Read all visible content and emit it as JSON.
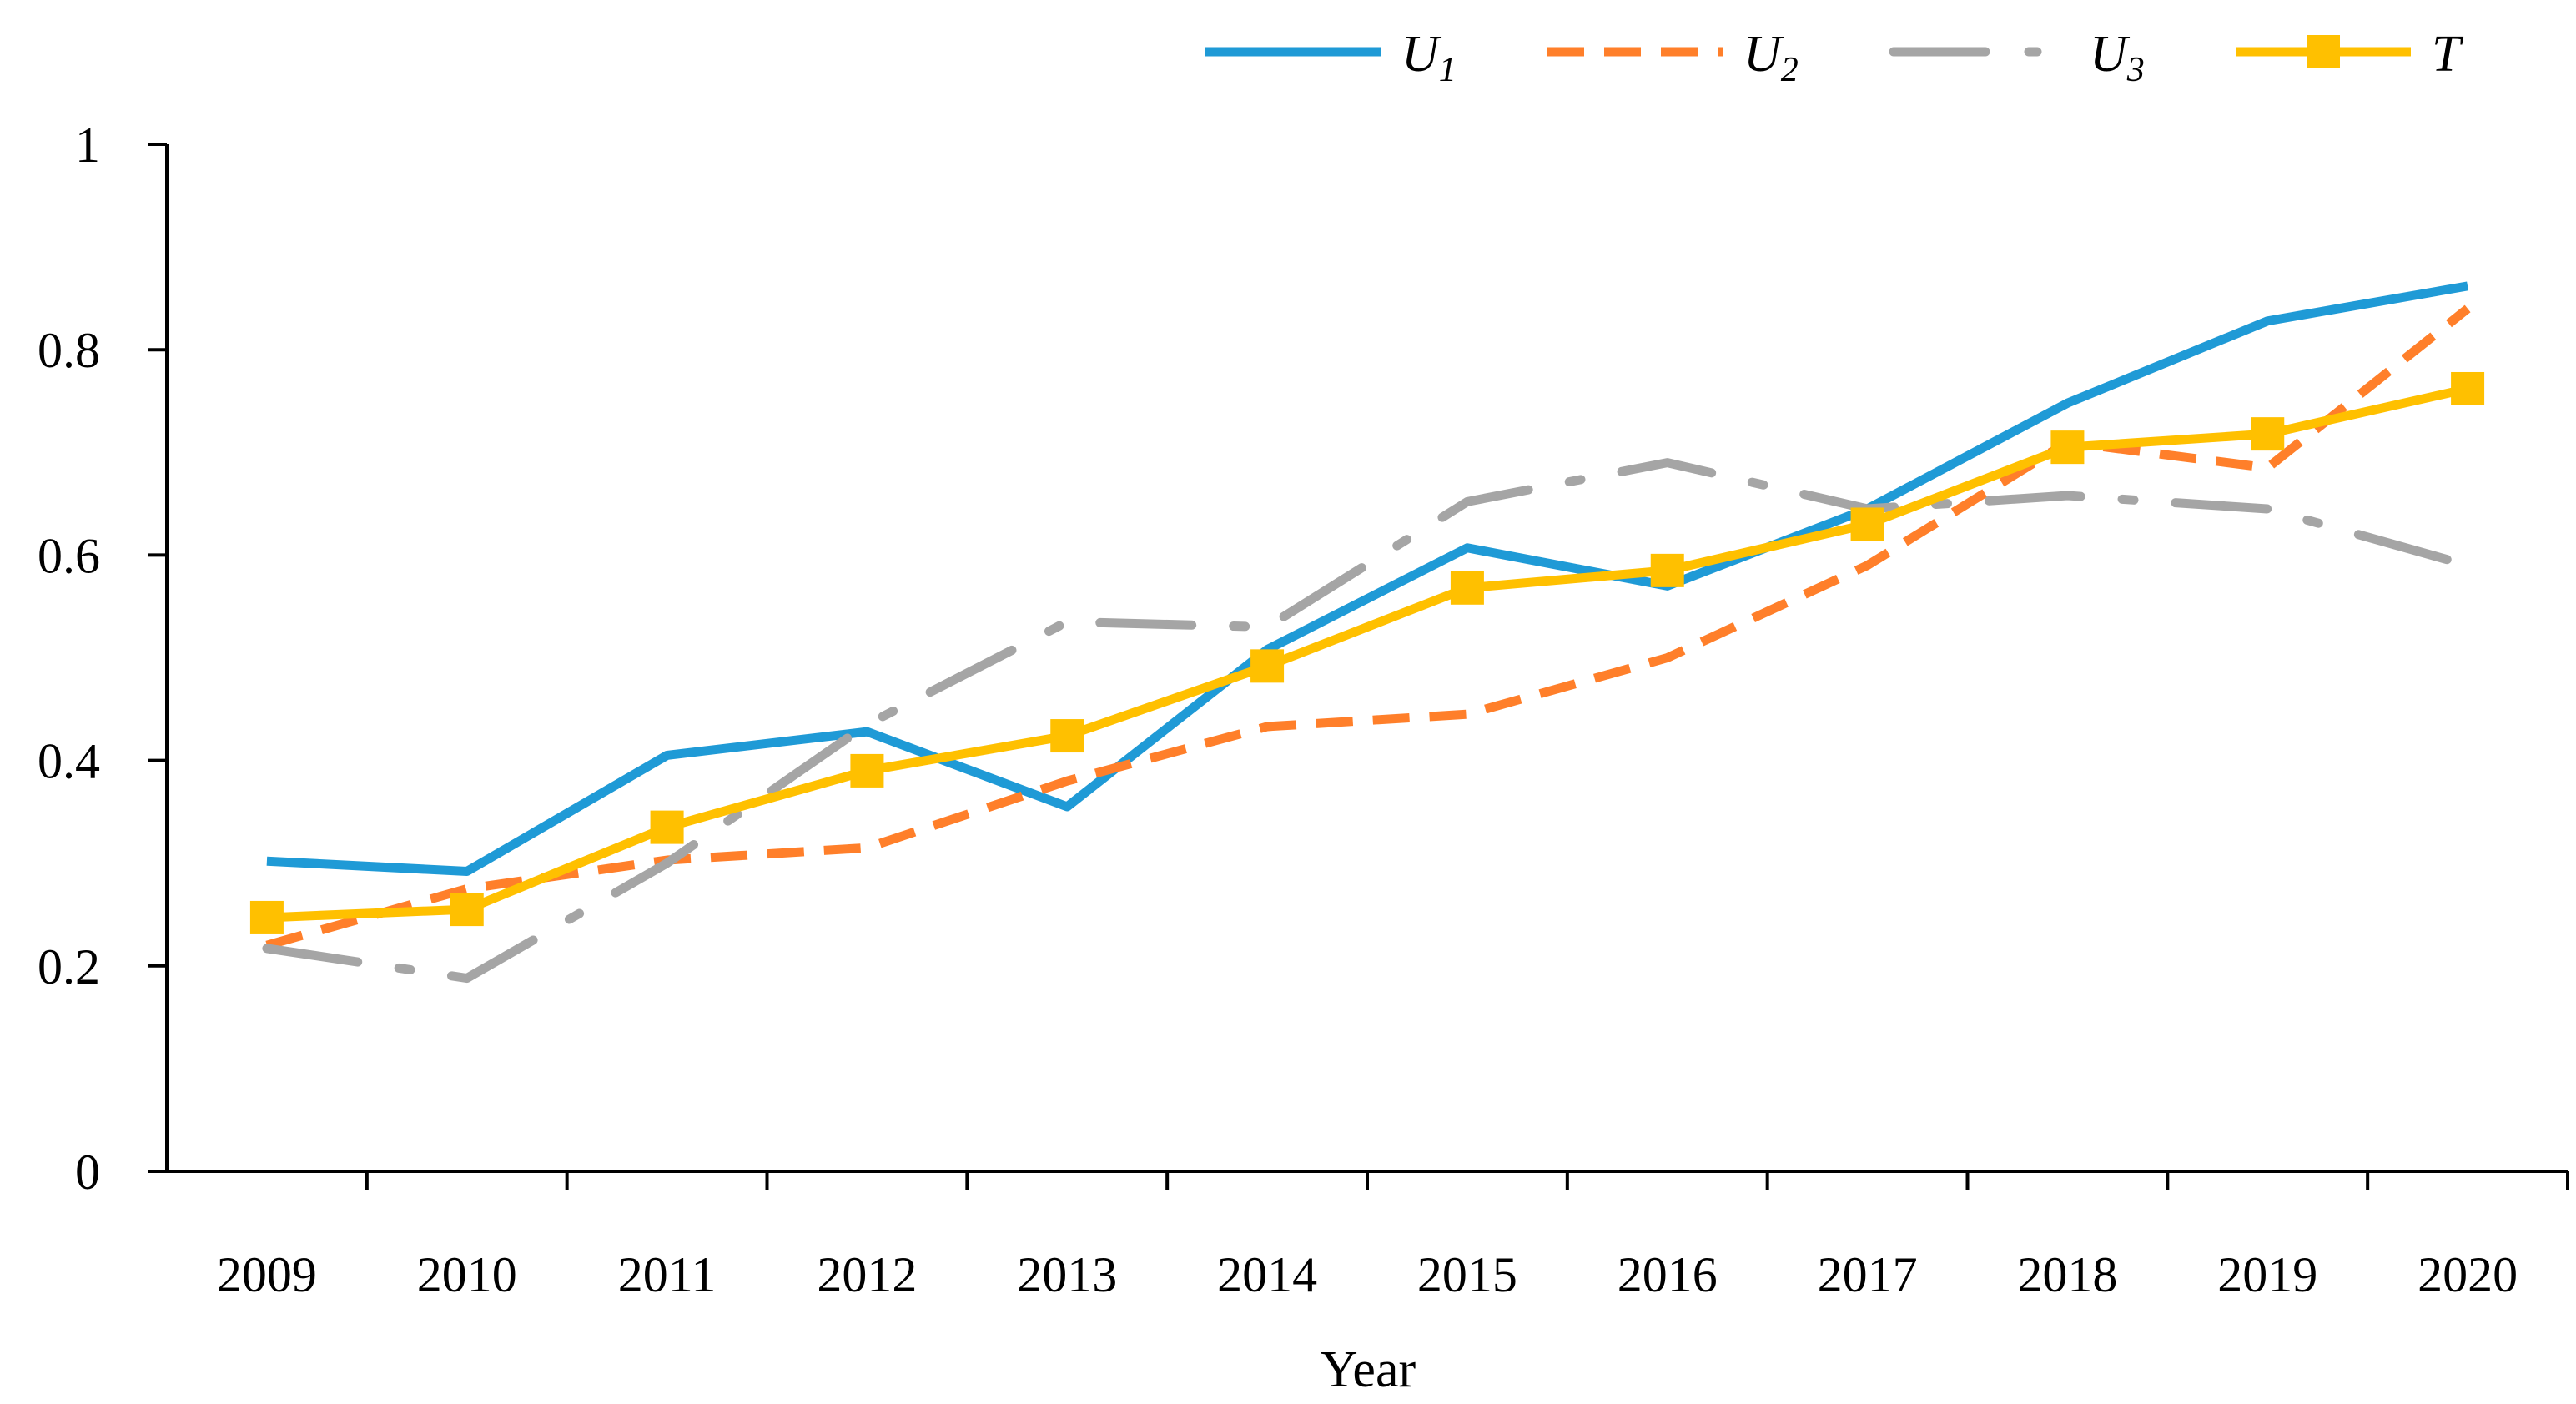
{
  "chart_data": {
    "type": "line",
    "title": "",
    "xlabel": "Year",
    "ylabel": "",
    "categories": [
      "2009",
      "2010",
      "2011",
      "2012",
      "2013",
      "2014",
      "2015",
      "2016",
      "2017",
      "2018",
      "2019",
      "2020"
    ],
    "ylim": [
      0,
      1
    ],
    "yticks": [
      0,
      0.2,
      0.4,
      0.6,
      0.8,
      1
    ],
    "ytick_labels": [
      "0",
      "0.2",
      "0.4",
      "0.6",
      "0.8",
      "1"
    ],
    "grid": false,
    "legend_position": "top-right",
    "series": [
      {
        "name": "U1",
        "label_main": "U",
        "label_sub": "1",
        "color": "#1f9ad6",
        "style": "solid",
        "values": [
          0.302,
          0.292,
          0.405,
          0.428,
          0.355,
          0.508,
          0.607,
          0.57,
          0.645,
          0.748,
          0.828,
          0.862
        ]
      },
      {
        "name": "U2",
        "label_main": "U",
        "label_sub": "2",
        "color": "#ff7f2a",
        "style": "dashed",
        "values": [
          0.22,
          0.275,
          0.303,
          0.315,
          0.38,
          0.433,
          0.445,
          0.5,
          0.59,
          0.71,
          0.685,
          0.84
        ]
      },
      {
        "name": "U3",
        "label_main": "U",
        "label_sub": "3",
        "color": "#a5a5a5",
        "style": "dashdot",
        "values": [
          0.217,
          0.188,
          0.3,
          0.435,
          0.535,
          0.53,
          0.652,
          0.69,
          0.645,
          0.658,
          0.645,
          0.59
        ]
      },
      {
        "name": "T",
        "label_main": "T",
        "label_sub": "",
        "color": "#ffc000",
        "style": "solid-square",
        "values": [
          0.247,
          0.255,
          0.335,
          0.39,
          0.424,
          0.492,
          0.568,
          0.585,
          0.63,
          0.705,
          0.718,
          0.762
        ]
      }
    ]
  }
}
